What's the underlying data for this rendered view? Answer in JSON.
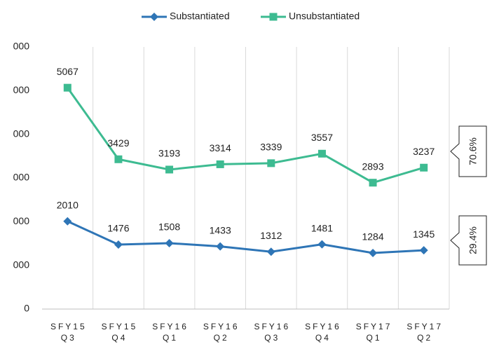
{
  "chart_data": {
    "type": "line",
    "categories": [
      "SFY15\nQ3",
      "SFY15\nQ4",
      "SFY16\nQ1",
      "SFY16\nQ2",
      "SFY16\nQ3",
      "SFY16\nQ4",
      "SFY17\nQ1",
      "SFY17\nQ2"
    ],
    "series": [
      {
        "name": "Substantiated",
        "color": "#2e75b6",
        "marker": "diamond",
        "values": [
          2010,
          1476,
          1508,
          1433,
          1312,
          1481,
          1284,
          1345
        ]
      },
      {
        "name": "Unsubstantiated",
        "color": "#3dbb91",
        "marker": "square",
        "values": [
          5067,
          3429,
          3193,
          3314,
          3339,
          3557,
          2893,
          3237
        ]
      }
    ],
    "ylim": [
      0,
      6000
    ],
    "yticks": [
      0,
      {
        "value": 1000,
        "label": "000"
      },
      {
        "value": 2000,
        "label": "000"
      },
      {
        "value": 3000,
        "label": "000"
      },
      {
        "value": 4000,
        "label": "000"
      },
      {
        "value": 5000,
        "label": "000"
      },
      {
        "value": 6000,
        "label": "000"
      }
    ],
    "grid": true,
    "legend": "top",
    "annotations": [
      "70.6%",
      "29.4%"
    ]
  }
}
